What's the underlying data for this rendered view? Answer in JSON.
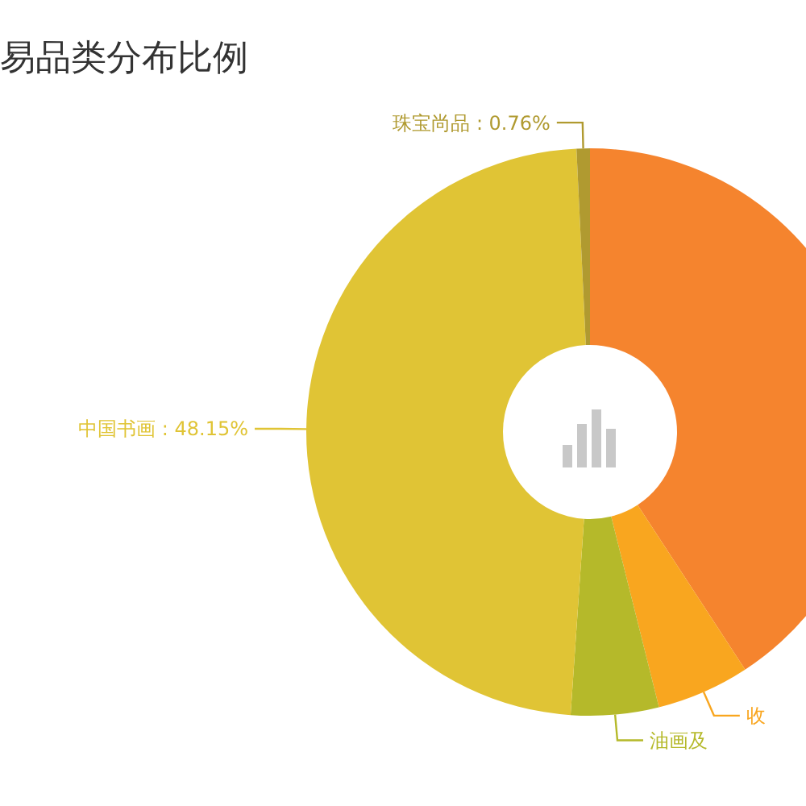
{
  "chart_data": {
    "type": "donut",
    "title": "易品类分布比例",
    "categories": [
      null,
      "收",
      "油画及",
      "中国书画",
      "珠宝尚品"
    ],
    "values": [
      40.79,
      5.3,
      5.0,
      48.15,
      0.76
    ],
    "value_labels": [
      null,
      null,
      null,
      "48.15%",
      "0.76%"
    ],
    "colors": [
      "#f5842e",
      "#f9a61f",
      "#b5b92a",
      "#e0c435",
      "#b09a30"
    ]
  }
}
